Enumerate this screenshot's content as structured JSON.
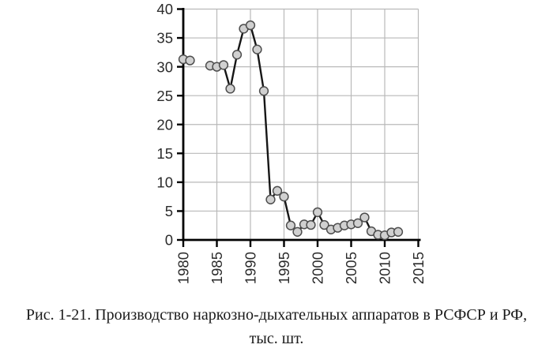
{
  "figure": {
    "caption_line1": "Рис. 1-21. Производство наркозно-дыхательных аппаратов в РСФСР и РФ,",
    "caption_line2": "тыс. шт."
  },
  "chart_data": {
    "type": "line",
    "title": "Рис. 1-21. Производство наркозно-дыхательных аппаратов в РСФСР и РФ, тыс. шт.",
    "series_name": "Производство наркозно-дыхательных аппаратов, тыс. шт.",
    "x": [
      1980,
      1981,
      1982,
      1983,
      1984,
      1985,
      1986,
      1987,
      1988,
      1989,
      1990,
      1991,
      1992,
      1993,
      1994,
      1995,
      1996,
      1997,
      1998,
      1999,
      2000,
      2001,
      2002,
      2003,
      2004,
      2005,
      2006,
      2007,
      2008,
      2009,
      2010,
      2011,
      2012
    ],
    "y": [
      31.3,
      31.1,
      null,
      null,
      30.2,
      30.0,
      30.3,
      26.2,
      32.1,
      36.6,
      37.2,
      33.0,
      25.8,
      7.0,
      8.5,
      7.5,
      2.5,
      1.4,
      2.7,
      2.6,
      4.8,
      2.6,
      1.8,
      2.1,
      2.5,
      2.7,
      2.9,
      3.9,
      1.5,
      0.9,
      0.8,
      1.3,
      1.4
    ],
    "missing_years": [
      1982,
      1983
    ],
    "xlim": [
      1980,
      2015
    ],
    "ylim": [
      0,
      40
    ],
    "x_ticks": [
      1980,
      1985,
      1990,
      1995,
      2000,
      2005,
      2010,
      2015
    ],
    "y_ticks": [
      0,
      5,
      10,
      15,
      20,
      25,
      30,
      35,
      40
    ],
    "grid": true,
    "legend_position": "none",
    "marker": "circle",
    "colors": {
      "line": "#161616",
      "marker_fill": "#d0d0d0",
      "marker_stroke": "#4d4d4d",
      "grid": "#b9b9b9",
      "axis": "#000000",
      "text": "#2b2b2b"
    }
  }
}
